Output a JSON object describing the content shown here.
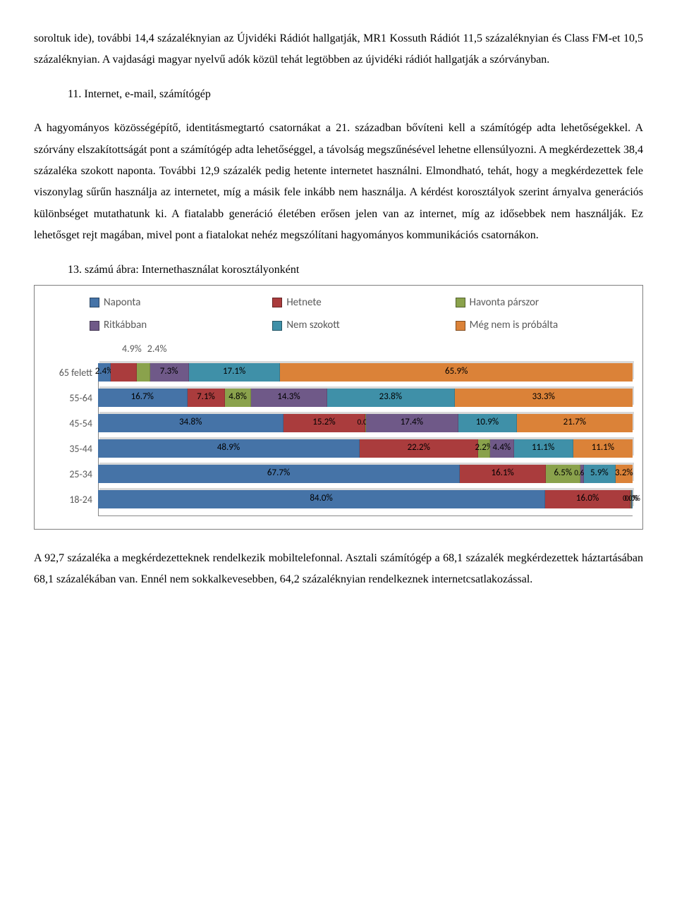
{
  "para1": "soroltuk ide), további 14,4 százaléknyian az Újvidéki Rádiót hallgatják, MR1 Kossuth Rádiót 11,5 százaléknyian és Class FM-et 10,5 százaléknyian. A vajdasági magyar nyelvű adók közül tehát legtöbben az újvidéki rádiót hallgatják a szórványban.",
  "heading": "11. Internet, e-mail, számítógép",
  "para2": "A hagyományos közösségépítő, identitásmegtartó csatornákat a 21. században bővíteni kell a számítógép adta lehetőségekkel. A szórvány elszakítottságát pont a számítógép adta lehetőséggel, a távolság megszűnésével lehetne ellensúlyozni. A megkérdezettek 38,4 százaléka szokott naponta. További 12,9 százalék pedig hetente internetet használni. Elmondható, tehát, hogy a megkérdezettek fele viszonylag sűrűn használja az internetet, míg a másik fele inkább nem használja. A kérdést korosztályok szerint árnyalva generációs különbséget mutathatunk ki. A fiatalabb generáció életében erősen jelen van az internet, míg az idősebbek nem használják. Ez lehetősget rejt magában, mivel pont a fiatalokat nehéz megszólítani hagyományos kommunikációs csatornákon.",
  "caption": "13. számú ábra: Internethasználat korosztályonként",
  "para3": "A 92,7 százaléka a megkérdezetteknek rendelkezik mobiltelefonnal. Asztali számítógép a 68,1 százalék megkérdezettek háztartásában 68,1 százalékában van. Ennél nem sokkalkevesebben, 64,2 százaléknyian rendelkeznek internetcsatlakozással.",
  "chart": {
    "type": "bar-stacked-horizontal-3d",
    "legend_font_family": "Calibri",
    "legend_fontsize": 15,
    "label_fontsize": 14,
    "value_fontsize": 13,
    "background_color": "#ffffff",
    "border_color": "#7f7f7f",
    "grid_color": "#888888",
    "series": [
      {
        "key": "naponta",
        "label": "Naponta",
        "color": "#4573a7"
      },
      {
        "key": "hetente",
        "label": "Hetnete",
        "color": "#aa3c3d"
      },
      {
        "key": "havonta",
        "label": "Havonta párszor",
        "color": "#8aa24c"
      },
      {
        "key": "ritkabban",
        "label": "Ritkábban",
        "color": "#6f5988"
      },
      {
        "key": "nemszokott",
        "label": "Nem szokott",
        "color": "#3f90a8"
      },
      {
        "key": "megnemis",
        "label": "Még nem is próbálta",
        "color": "#db8238"
      }
    ],
    "top_labels": [
      "4.9%",
      "2.4%"
    ],
    "categories": [
      {
        "name": "65 felett",
        "values": {
          "naponta": 2.4,
          "hetente": 4.9,
          "havonta": 2.4,
          "ritkabban": 7.3,
          "nemszokott": 17.1,
          "megnemis": 65.9
        },
        "labels": [
          "2.4%",
          "",
          "",
          "7.3%",
          "17.1%",
          "65.9%"
        ]
      },
      {
        "name": "55-64",
        "values": {
          "naponta": 16.7,
          "hetente": 7.1,
          "havonta": 4.8,
          "ritkabban": 14.3,
          "nemszokott": 23.8,
          "megnemis": 33.3
        },
        "labels": [
          "16.7%",
          "7.1%",
          "4.8%",
          "14.3%",
          "23.8%",
          "33.3%"
        ]
      },
      {
        "name": "45-54",
        "values": {
          "naponta": 34.8,
          "hetente": 15.2,
          "havonta": 0.0,
          "ritkabban": 17.4,
          "nemszokott": 10.9,
          "megnemis": 21.7
        },
        "labels": [
          "34.8%",
          "15.2%",
          "0.0%",
          "17.4%",
          "10.9%",
          "21.7%"
        ]
      },
      {
        "name": "35-44",
        "values": {
          "naponta": 48.9,
          "hetente": 22.2,
          "havonta": 2.2,
          "ritkabban": 4.4,
          "nemszokott": 11.1,
          "megnemis": 11.1
        },
        "labels": [
          "48.9%",
          "22.2%",
          "2.2%",
          "4.4%",
          "11.1%",
          "11.1%"
        ]
      },
      {
        "name": "25-34",
        "values": {
          "naponta": 67.7,
          "hetente": 16.1,
          "havonta": 6.5,
          "ritkabban": 0.6,
          "nemszokott": 5.9,
          "megnemis": 3.2
        },
        "labels": [
          "67.7%",
          "16.1%",
          "6.5%",
          "0.6%",
          "5.9%",
          "3.2%"
        ]
      },
      {
        "name": "18-24",
        "values": {
          "naponta": 84.0,
          "hetente": 16.0,
          "havonta": 0.0,
          "ritkabban": 0.0,
          "nemszokott": 0.0,
          "megnemis": 0.0
        },
        "labels": [
          "84.0%",
          "16.0%",
          "0.0%",
          "",
          "",
          "0.0%"
        ]
      }
    ]
  }
}
